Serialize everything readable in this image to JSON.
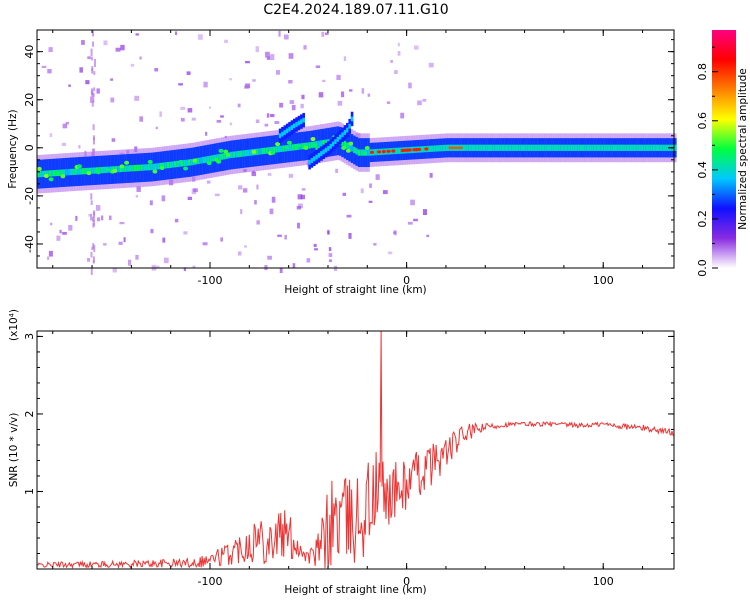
{
  "title": "C2E4.2024.189.07.11.G10",
  "chart_data": [
    {
      "type": "heatmap",
      "xlabel": "Height of straight line (km)",
      "ylabel": "Frequency (Hz)",
      "xlim": [
        -188,
        136
      ],
      "ylim": [
        -50,
        49
      ],
      "x_ticks": [
        -100,
        0,
        100
      ],
      "y_ticks": [
        -40,
        -20,
        0,
        20,
        40
      ],
      "grid": false,
      "colorbar": {
        "label": "Normalized spectral amplitude",
        "range": [
          0,
          0.97
        ],
        "ticks": [
          0.0,
          0.2,
          0.4,
          0.6,
          0.8
        ],
        "colormap": [
          "#ffffff",
          "#8a2be2",
          "#1010ff",
          "#00c8ff",
          "#00ff40",
          "#ffff00",
          "#ff7f00",
          "#ff0000",
          "#ff0080"
        ]
      },
      "main_band": {
        "x": [
          -188,
          -170,
          -150,
          -130,
          -110,
          -90,
          -70,
          -50,
          -35,
          -25,
          -20,
          0,
          20,
          50,
          80,
          100,
          120,
          136
        ],
        "center_hz": [
          -11,
          -10,
          -9,
          -8,
          -6,
          -3,
          -1,
          1,
          3,
          -2,
          -2,
          -1,
          0,
          0,
          0,
          0,
          0,
          0
        ]
      },
      "branches": [
        {
          "x": [
            -50,
            -40,
            -30,
            -28
          ],
          "center_hz": [
            -6,
            0,
            8,
            13
          ]
        },
        {
          "x": [
            -65,
            -58,
            -52
          ],
          "center_hz": [
            5,
            9,
            12
          ]
        }
      ]
    },
    {
      "type": "line",
      "xlabel": "Height of straight line (km)",
      "ylabel": "SNR (10 * v/v)",
      "y_scale_label": "(x10⁴)",
      "xlim": [
        -188,
        136
      ],
      "ylim": [
        0,
        3.07
      ],
      "x_ticks": [
        -100,
        0,
        100
      ],
      "y_ticks": [
        1,
        2,
        3
      ],
      "color": "#ee3333",
      "grid": false,
      "series": [
        {
          "x": [
            -188,
            -170,
            -150,
            -130,
            -110,
            -100,
            -90,
            -80,
            -75,
            -70,
            -65,
            -60,
            -55,
            -50,
            -45,
            -40,
            -35,
            -30,
            -25,
            -20,
            -15,
            -10,
            -5,
            0,
            10,
            20,
            30,
            40,
            50,
            60,
            70,
            80,
            90,
            100,
            110,
            120,
            136
          ],
          "y": [
            0.05,
            0.06,
            0.06,
            0.07,
            0.08,
            0.12,
            0.2,
            0.35,
            0.4,
            0.38,
            0.45,
            0.42,
            0.3,
            0.15,
            0.22,
            0.5,
            0.7,
            0.6,
            0.65,
            0.8,
            1.0,
            0.95,
            1.0,
            1.1,
            1.3,
            1.5,
            1.75,
            1.83,
            1.86,
            1.87,
            1.87,
            1.86,
            1.85,
            1.87,
            1.84,
            1.82,
            1.76
          ]
        }
      ],
      "noise": [
        0.03,
        0.04,
        0.04,
        0.05,
        0.06,
        0.1,
        0.16,
        0.25,
        0.35,
        0.3,
        0.38,
        0.32,
        0.2,
        0.08,
        0.25,
        0.55,
        0.8,
        0.55,
        0.6,
        0.7,
        0.55,
        0.4,
        0.4,
        0.35,
        0.3,
        0.22,
        0.12,
        0.05,
        0.03,
        0.03,
        0.03,
        0.03,
        0.03,
        0.03,
        0.04,
        0.04,
        0.04
      ],
      "peak": {
        "x": -13,
        "y": 3.07
      }
    }
  ]
}
